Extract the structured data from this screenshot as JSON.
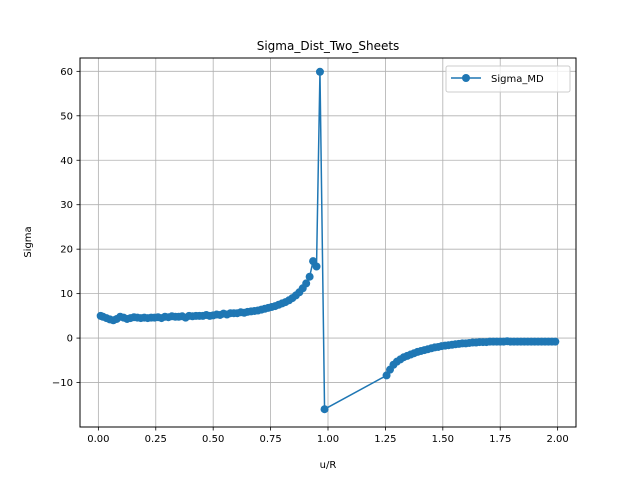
{
  "chart_data": {
    "type": "line",
    "title": "Sigma_Dist_Two_Sheets",
    "xlabel": "u/R",
    "ylabel": "Sigma",
    "xlim": [
      -0.08,
      2.08
    ],
    "ylim": [
      -20,
      63
    ],
    "x_ticks": [
      0.0,
      0.25,
      0.5,
      0.75,
      1.0,
      1.25,
      1.5,
      1.75,
      2.0
    ],
    "x_tick_labels": [
      "0.00",
      "0.25",
      "0.50",
      "0.75",
      "1.00",
      "1.25",
      "1.50",
      "1.75",
      "2.00"
    ],
    "y_ticks": [
      -10,
      0,
      10,
      20,
      30,
      40,
      50,
      60
    ],
    "y_tick_labels": [
      "−10",
      "0",
      "10",
      "20",
      "30",
      "40",
      "50",
      "60"
    ],
    "grid": true,
    "legend_position": "top-right",
    "color": "#1f77b4",
    "series": [
      {
        "name": "Sigma_MD",
        "marker": "circle",
        "x": [
          0.01,
          0.02,
          0.035,
          0.05,
          0.065,
          0.08,
          0.095,
          0.11,
          0.125,
          0.14,
          0.155,
          0.17,
          0.185,
          0.2,
          0.215,
          0.23,
          0.245,
          0.26,
          0.275,
          0.29,
          0.305,
          0.32,
          0.335,
          0.35,
          0.365,
          0.38,
          0.395,
          0.41,
          0.425,
          0.44,
          0.455,
          0.47,
          0.485,
          0.5,
          0.515,
          0.53,
          0.545,
          0.56,
          0.575,
          0.59,
          0.605,
          0.62,
          0.635,
          0.65,
          0.665,
          0.68,
          0.695,
          0.71,
          0.725,
          0.74,
          0.755,
          0.77,
          0.785,
          0.8,
          0.815,
          0.83,
          0.845,
          0.86,
          0.875,
          0.89,
          0.905,
          0.92,
          0.935,
          0.95,
          0.965,
          0.985,
          1.255,
          1.27,
          1.285,
          1.3,
          1.315,
          1.33,
          1.345,
          1.36,
          1.375,
          1.39,
          1.405,
          1.42,
          1.435,
          1.45,
          1.465,
          1.48,
          1.495,
          1.51,
          1.525,
          1.54,
          1.555,
          1.57,
          1.585,
          1.6,
          1.615,
          1.63,
          1.645,
          1.66,
          1.675,
          1.69,
          1.705,
          1.72,
          1.735,
          1.75,
          1.765,
          1.78,
          1.795,
          1.81,
          1.825,
          1.84,
          1.855,
          1.87,
          1.885,
          1.9,
          1.915,
          1.93,
          1.945,
          1.96,
          1.975,
          1.99
        ],
        "values": [
          5.0,
          4.8,
          4.5,
          4.2,
          4.0,
          4.3,
          4.8,
          4.6,
          4.3,
          4.5,
          4.7,
          4.6,
          4.5,
          4.6,
          4.5,
          4.6,
          4.6,
          4.7,
          4.5,
          4.8,
          4.7,
          4.9,
          4.8,
          4.8,
          4.9,
          4.6,
          5.0,
          4.9,
          5.0,
          5.0,
          5.0,
          5.2,
          5.0,
          5.1,
          5.3,
          5.2,
          5.5,
          5.3,
          5.6,
          5.6,
          5.6,
          5.8,
          5.7,
          5.9,
          6.0,
          6.1,
          6.2,
          6.4,
          6.6,
          6.8,
          7.0,
          7.2,
          7.5,
          7.8,
          8.1,
          8.5,
          9.0,
          9.6,
          10.3,
          11.2,
          12.3,
          13.8,
          17.3,
          16.1,
          59.9,
          -16.0,
          -8.4,
          -7.1,
          -6.0,
          -5.3,
          -4.8,
          -4.3,
          -4.0,
          -3.7,
          -3.4,
          -3.1,
          -2.9,
          -2.7,
          -2.5,
          -2.3,
          -2.1,
          -2.0,
          -1.8,
          -1.7,
          -1.6,
          -1.5,
          -1.4,
          -1.3,
          -1.2,
          -1.2,
          -1.1,
          -1.0,
          -1.0,
          -0.9,
          -0.9,
          -0.9,
          -0.8,
          -0.8,
          -0.8,
          -0.8,
          -0.8,
          -0.7,
          -0.8,
          -0.8,
          -0.8,
          -0.8,
          -0.8,
          -0.8,
          -0.8,
          -0.8,
          -0.8,
          -0.8,
          -0.8,
          -0.8,
          -0.8,
          -0.8
        ]
      }
    ]
  }
}
